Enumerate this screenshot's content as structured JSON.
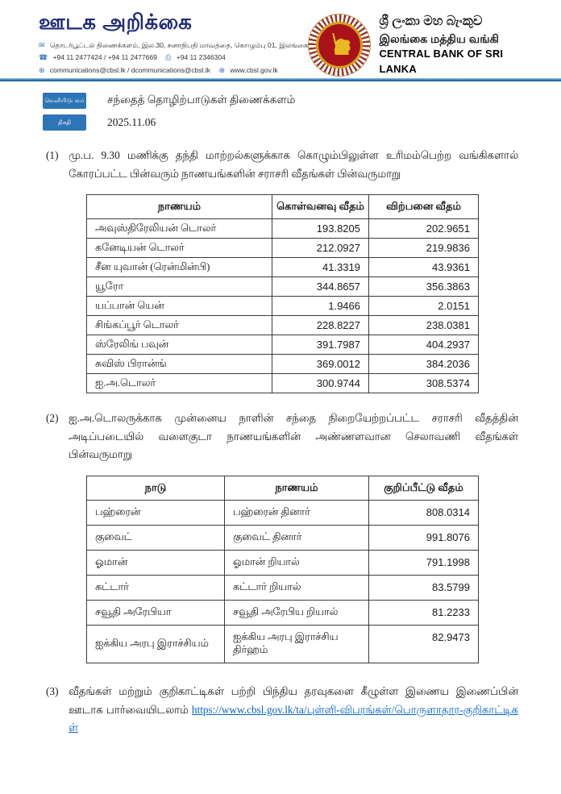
{
  "header": {
    "logotype": "ஊடக அறிக்கை",
    "contact": {
      "address": "தொடர்பூட்டல் திணைக்களம், இல.30, சனாதிபதி மாவத்தை, கொழும்பு 01, இலங்கை",
      "phones": "+94 11 2477424 / +94 11 2477669",
      "fax": "+94 11 2346304",
      "emails": "communications@cbsl.lk / dcommunications@cbsl.lk",
      "website": "www.cbsl.gov.lk"
    },
    "bank": {
      "name_sinhala": "ශ්‍රී ලංකා මහ බැංකුව",
      "name_tamil": "இலங்கை மத்திய வங்கி",
      "name_english": "CENTRAL BANK OF SRI LANKA"
    }
  },
  "icons": {
    "envelope": "✉",
    "phone": "☎",
    "fax": "⎙",
    "globe": "⊕"
  },
  "meta": {
    "issuer_label": "வெளியிடுபவர்",
    "issuer_value": "சந்தைத் தொழிற்பாடுகள் திணைக்களம்",
    "date_label": "திகதி",
    "date_value": "2025.11.06"
  },
  "paragraphs": {
    "p1": {
      "num": "(1)",
      "text": "மு.ப. 9.30 மணிக்கு தந்தி மாற்றல்களுக்காக கொழும்பிலுள்ள உரிமம்பெற்ற வங்கிகளால் கோரப்பட்ட பின்வரும் நாணயங்களின் சராசரி வீதங்கள் பின்வருமாறு"
    },
    "p2": {
      "num": "(2)",
      "text": "ஐ.அ.டொலருக்காக முன்னைய நாளின் சந்தை நிறையேற்றப்பட்ட சராசரி வீதத்தின் அடிப்படையில் வளைகுடா நாணயங்களின் அண்ணளவான செலாவணி வீதங்கள் பின்வருமாறு"
    },
    "p3": {
      "num": "(3)",
      "text": "வீதங்கள் மற்றும் குறிகாட்டிகள் பற்றி பிந்திய தரவுகளை கீழுள்ள இணைய இணைப்பின் ஊடாக பார்வையிடலாம்",
      "link": "https://www.cbsl.gov.lk/ta/புள்ளி-விபரங்கள்/பொருளாதார-குறிகாட்டிகள்"
    }
  },
  "table1": {
    "headers": [
      "நாணயம்",
      "கொள்வனவு வீதம்",
      "விற்பனை வீதம்"
    ],
    "rows": [
      [
        "அவுஸ்திரேலியன் டொலர்",
        "193.8205",
        "202.9651"
      ],
      [
        "கனேடியன் டொலர்",
        "212.0927",
        "219.9836"
      ],
      [
        "சீன யுவான் (ரென்மின்பி)",
        "41.3319",
        "43.9361"
      ],
      [
        "யூரோ",
        "344.8657",
        "356.3863"
      ],
      [
        "யப்பான் யென்",
        "1.9466",
        "2.0151"
      ],
      [
        "சிங்கப்பூர் டொலர்",
        "228.8227",
        "238.0381"
      ],
      [
        "ஸ்ரேலிங் பவுன்",
        "391.7987",
        "404.2937"
      ],
      [
        "சுவிஸ் பிரான்ங்",
        "369.0012",
        "384.2036"
      ],
      [
        "ஐ.அ.டொலர்",
        "300.9744",
        "308.5374"
      ]
    ]
  },
  "table2": {
    "headers": [
      "நாடு",
      "நாணயம்",
      "குறிப்பீட்டு வீதம்"
    ],
    "rows": [
      [
        "பஹ்ரைன்",
        "பஹ்ரைன் தினார்",
        "808.0314"
      ],
      [
        "குவைட்",
        "குவைட் தினார்",
        "991.8076"
      ],
      [
        "ஓமான்",
        "ஓமான் றியால்",
        "791.1998"
      ],
      [
        "கட்டார்",
        "கட்டார் றியால்",
        "83.5799"
      ],
      [
        "சவூதி அரேபியா",
        "சவூதி அரேபிய றியால்",
        "81.2233"
      ],
      [
        "ஐக்கிய அரபு இராச்சியம்",
        "ஐக்கிய அரபு இராச்சிய திர்ஹம்",
        "82.9473"
      ]
    ]
  },
  "colors": {
    "accent_blue": "#2e75b6",
    "logotype_navy": "#1e2a78",
    "link_blue": "#0563c1",
    "emblem_red": "#a81218",
    "emblem_gold": "#d4a017"
  }
}
